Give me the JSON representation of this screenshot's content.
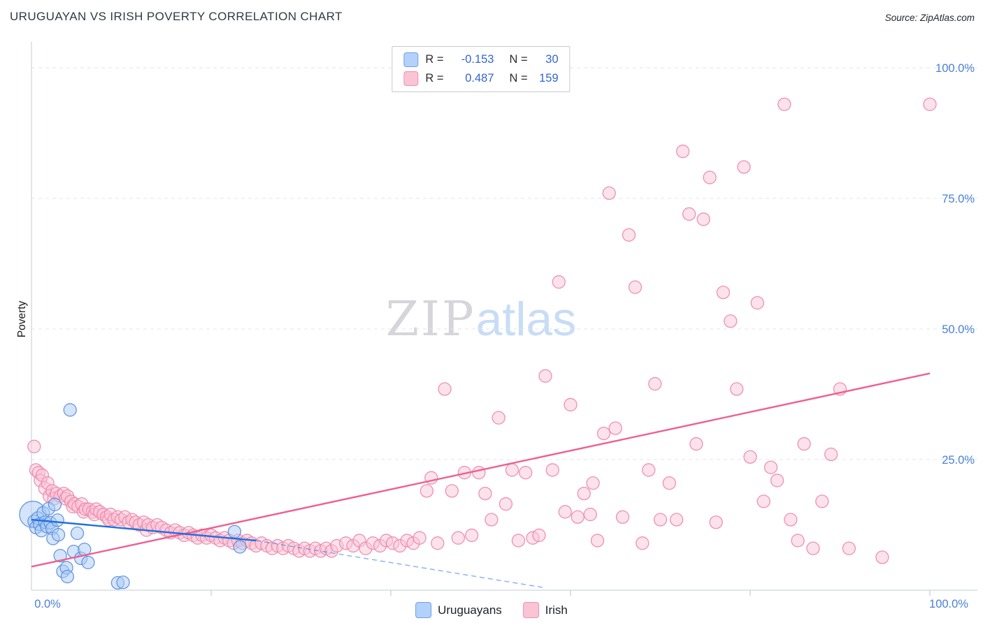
{
  "header": {
    "title": "URUGUAYAN VS IRISH POVERTY CORRELATION CHART",
    "source": "Source: ZipAtlas.com"
  },
  "watermark": {
    "part1": "ZIP",
    "part2": "atlas"
  },
  "legend_box": {
    "rows": [
      {
        "series": "Uruguayans",
        "r_label": "R =",
        "r_value": "-0.153",
        "n_label": "N =",
        "n_value": "30"
      },
      {
        "series": "Irish",
        "r_label": "R =",
        "r_value": "0.487",
        "n_label": "N =",
        "n_value": "159"
      }
    ]
  },
  "bottom_legend": {
    "items": [
      {
        "label": "Uruguayans",
        "color": "#b3d1fb"
      },
      {
        "label": "Irish",
        "color": "#f9c4d3"
      }
    ]
  },
  "axes": {
    "x_min_label": "0.0%",
    "x_max_label": "100.0%",
    "y_tick_labels": [
      "100.0%",
      "75.0%",
      "50.0%",
      "25.0%"
    ],
    "y_tick_values": [
      100,
      75,
      50,
      25
    ],
    "x_tick_values": [
      20,
      40,
      60,
      80,
      100
    ]
  },
  "colors": {
    "axis_label": "#4a80d9",
    "uruguayan_fill": "#a9cbf8",
    "uruguayan_stroke": "#5b8dd9",
    "irish_fill": "#f9c6d5",
    "irish_stroke": "#ec86ad",
    "uruguayan_trend": "#1f6fe0",
    "irish_trend": "#ef5f92"
  },
  "chart_data": {
    "type": "scatter",
    "title": "URUGUAYAN VS IRISH POVERTY CORRELATION CHART",
    "xlabel": "",
    "ylabel": "Poverty",
    "xlim": [
      0,
      100
    ],
    "ylim": [
      0,
      100
    ],
    "grid": "horizontal-dashed",
    "legend_position": "top-center",
    "series": [
      {
        "name": "Uruguayans",
        "R": -0.153,
        "N": 30,
        "fill": "#a9cbf8",
        "stroke": "#5b8dd9",
        "points": [
          [
            0.15,
            14.5,
            19
          ],
          [
            0.3,
            13.2
          ],
          [
            0.5,
            12.0
          ],
          [
            0.7,
            13.8
          ],
          [
            0.9,
            12.6
          ],
          [
            1.1,
            11.4
          ],
          [
            1.3,
            14.8
          ],
          [
            1.5,
            13.0
          ],
          [
            1.7,
            12.2
          ],
          [
            1.9,
            15.6
          ],
          [
            2.1,
            12.9
          ],
          [
            2.3,
            11.8
          ],
          [
            2.4,
            9.9
          ],
          [
            2.6,
            16.4
          ],
          [
            2.9,
            13.4
          ],
          [
            3.0,
            10.6
          ],
          [
            3.2,
            6.6
          ],
          [
            3.5,
            3.6
          ],
          [
            3.9,
            4.3
          ],
          [
            4.0,
            2.6
          ],
          [
            4.3,
            34.5
          ],
          [
            4.7,
            7.4
          ],
          [
            5.1,
            10.9
          ],
          [
            5.5,
            6.1
          ],
          [
            5.9,
            7.8
          ],
          [
            6.3,
            5.3
          ],
          [
            9.6,
            1.4
          ],
          [
            10.2,
            1.5
          ],
          [
            22.6,
            11.2
          ],
          [
            23.2,
            8.3
          ]
        ]
      },
      {
        "name": "Irish",
        "R": 0.487,
        "N": 159,
        "fill": "#f9c6d5",
        "stroke": "#ec86ad",
        "points": [
          [
            0.3,
            27.5
          ],
          [
            0.5,
            23.0
          ],
          [
            0.8,
            22.5
          ],
          [
            1.0,
            21.0
          ],
          [
            1.2,
            22.0
          ],
          [
            1.5,
            19.5
          ],
          [
            1.8,
            20.5
          ],
          [
            2.0,
            18.0
          ],
          [
            2.3,
            19.0
          ],
          [
            2.5,
            17.5
          ],
          [
            2.8,
            18.5
          ],
          [
            3.2,
            18.0
          ],
          [
            3.6,
            18.5
          ],
          [
            3.8,
            17.5
          ],
          [
            4.0,
            18.0
          ],
          [
            4.4,
            17.0
          ],
          [
            4.6,
            16.0
          ],
          [
            4.8,
            16.5
          ],
          [
            5.2,
            16.0
          ],
          [
            5.6,
            16.5
          ],
          [
            5.8,
            15.0
          ],
          [
            6.0,
            15.5
          ],
          [
            6.4,
            15.5
          ],
          [
            6.8,
            15.0
          ],
          [
            7.0,
            14.5
          ],
          [
            7.2,
            15.5
          ],
          [
            7.6,
            15.0
          ],
          [
            8.0,
            14.5
          ],
          [
            8.4,
            14.0
          ],
          [
            8.6,
            13.5
          ],
          [
            8.8,
            14.5
          ],
          [
            9.2,
            13.5
          ],
          [
            9.6,
            14.0
          ],
          [
            10.0,
            13.5
          ],
          [
            10.4,
            14.0
          ],
          [
            10.8,
            13.0
          ],
          [
            11.2,
            13.5
          ],
          [
            11.6,
            13.0
          ],
          [
            12.0,
            12.5
          ],
          [
            12.5,
            13.0
          ],
          [
            12.8,
            11.5
          ],
          [
            13.0,
            12.5
          ],
          [
            13.5,
            12.0
          ],
          [
            14.0,
            12.5
          ],
          [
            14.5,
            12.0
          ],
          [
            15.0,
            11.5
          ],
          [
            15.5,
            11.0
          ],
          [
            16.0,
            11.5
          ],
          [
            16.5,
            11.0
          ],
          [
            17.0,
            10.5
          ],
          [
            17.5,
            11.0
          ],
          [
            18.0,
            10.5
          ],
          [
            18.5,
            10.0
          ],
          [
            19.0,
            10.5
          ],
          [
            19.5,
            10.0
          ],
          [
            20.0,
            10.5
          ],
          [
            20.5,
            10.0
          ],
          [
            21.0,
            9.5
          ],
          [
            21.5,
            10.0
          ],
          [
            22.0,
            9.5
          ],
          [
            22.5,
            9.0
          ],
          [
            23.0,
            9.5
          ],
          [
            23.5,
            9.0
          ],
          [
            24.0,
            9.5
          ],
          [
            24.5,
            9.0
          ],
          [
            25.0,
            8.5
          ],
          [
            25.6,
            9.0
          ],
          [
            26.2,
            8.5
          ],
          [
            26.8,
            8.0
          ],
          [
            27.4,
            8.5
          ],
          [
            28.0,
            8.0
          ],
          [
            28.6,
            8.5
          ],
          [
            29.2,
            8.0
          ],
          [
            29.8,
            7.5
          ],
          [
            30.4,
            8.0
          ],
          [
            31.0,
            7.5
          ],
          [
            31.6,
            8.0
          ],
          [
            32.2,
            7.5
          ],
          [
            32.8,
            8.0
          ],
          [
            33.4,
            7.5
          ],
          [
            34.0,
            8.5
          ],
          [
            35.0,
            9.0
          ],
          [
            35.8,
            8.5
          ],
          [
            36.5,
            9.5
          ],
          [
            37.2,
            8.0
          ],
          [
            38.0,
            9.0
          ],
          [
            38.8,
            8.5
          ],
          [
            39.5,
            9.5
          ],
          [
            40.2,
            9.0
          ],
          [
            41.0,
            8.5
          ],
          [
            41.8,
            9.5
          ],
          [
            42.5,
            9.0
          ],
          [
            43.2,
            10.0
          ],
          [
            44.0,
            19.0
          ],
          [
            44.5,
            21.5
          ],
          [
            45.2,
            9.0
          ],
          [
            46.0,
            38.5
          ],
          [
            46.8,
            19.0
          ],
          [
            47.5,
            10.0
          ],
          [
            48.2,
            22.5
          ],
          [
            49.0,
            10.5
          ],
          [
            49.8,
            22.5
          ],
          [
            50.5,
            18.5
          ],
          [
            51.2,
            13.5
          ],
          [
            52.0,
            33.0
          ],
          [
            52.8,
            16.5
          ],
          [
            53.5,
            23.0
          ],
          [
            54.2,
            9.5
          ],
          [
            55.0,
            22.5
          ],
          [
            55.8,
            10.0
          ],
          [
            56.5,
            10.5
          ],
          [
            57.2,
            41.0
          ],
          [
            58.0,
            23.0
          ],
          [
            58.7,
            59.0
          ],
          [
            59.4,
            15.0
          ],
          [
            60.0,
            35.5
          ],
          [
            60.8,
            14.0
          ],
          [
            61.5,
            18.5
          ],
          [
            62.2,
            14.5
          ],
          [
            62.5,
            20.5
          ],
          [
            63.0,
            9.5
          ],
          [
            63.7,
            30.0
          ],
          [
            64.3,
            76.0
          ],
          [
            65.0,
            31.0
          ],
          [
            65.8,
            14.0
          ],
          [
            66.5,
            68.0
          ],
          [
            67.2,
            58.0
          ],
          [
            68.0,
            9.0
          ],
          [
            68.7,
            23.0
          ],
          [
            69.4,
            39.5
          ],
          [
            70.0,
            13.5
          ],
          [
            71.0,
            20.5
          ],
          [
            71.8,
            13.5
          ],
          [
            72.5,
            84.0
          ],
          [
            73.2,
            72.0
          ],
          [
            74.0,
            28.0
          ],
          [
            74.8,
            71.0
          ],
          [
            75.5,
            79.0
          ],
          [
            76.2,
            13.0
          ],
          [
            77.0,
            57.0
          ],
          [
            77.8,
            51.5
          ],
          [
            78.5,
            38.5
          ],
          [
            79.3,
            81.0
          ],
          [
            80.0,
            25.5
          ],
          [
            80.8,
            55.0
          ],
          [
            81.5,
            17.0
          ],
          [
            82.3,
            23.5
          ],
          [
            83.0,
            21.0
          ],
          [
            83.8,
            93.0
          ],
          [
            84.5,
            13.5
          ],
          [
            85.3,
            9.5
          ],
          [
            86.0,
            28.0
          ],
          [
            87.0,
            8.0
          ],
          [
            88.0,
            17.0
          ],
          [
            89.0,
            26.0
          ],
          [
            90.0,
            38.5
          ],
          [
            91.0,
            8.0
          ],
          [
            94.7,
            6.3
          ],
          [
            100.0,
            93.0
          ]
        ]
      }
    ],
    "trend_lines": [
      {
        "series": "Irish",
        "color": "#ef5f92",
        "solid": [
          [
            0,
            4.5
          ],
          [
            100,
            41.5
          ]
        ]
      },
      {
        "series": "Uruguayans",
        "color": "#1f6fe0",
        "solid": [
          [
            0,
            13.5
          ],
          [
            25,
            9.5
          ]
        ],
        "dashed": [
          [
            25,
            9.5
          ],
          [
            57,
            0.5
          ]
        ]
      }
    ]
  }
}
